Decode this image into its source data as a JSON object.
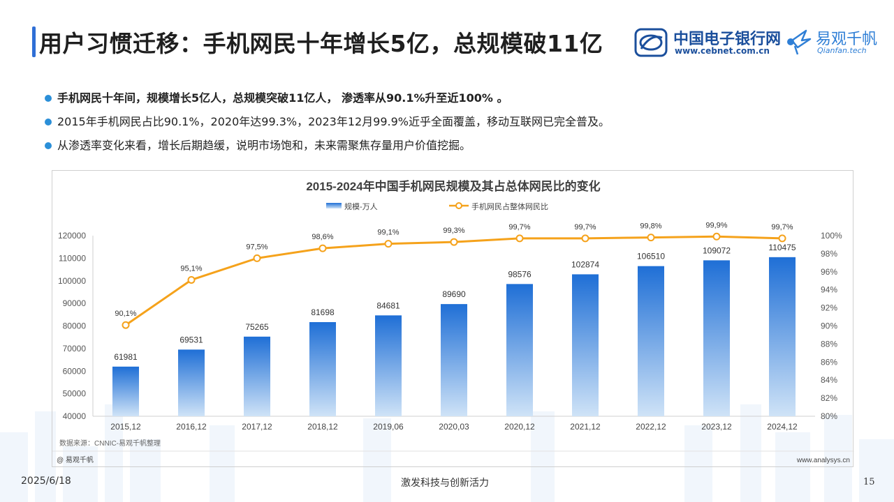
{
  "header": {
    "title": "用户习惯迁移：手机网民十年增长5亿，总规模破11亿",
    "logo_cebnet_cn": "中国电子银行网",
    "logo_cebnet_url": "www.cebnet.com.cn",
    "logo_qianfan_cn": "易观千帆",
    "logo_qianfan_en": "Qianfan.tech"
  },
  "bullets": [
    "手机网民十年间，规模增长5亿人，总规模突破11亿人， 渗透率从90.1%升至近100% 。",
    "2015年手机网民占比90.1%，2020年达99.3%，2023年12月99.9%近乎全面覆盖，移动互联网已完全普及。",
    "从渗透率变化来看，增长后期趋缓，说明市场饱和，未来需聚焦存量用户价值挖掘。"
  ],
  "chart_footer": {
    "source": "数据来源：CNNIC-易观千帆整理",
    "brand": "@ 易观千帆",
    "site": "www.analysys.cn"
  },
  "footer": {
    "date": "2025/6/18",
    "slogan": "激发科技与创新活力",
    "page": "15"
  },
  "colors": {
    "bar_top": "#1f6fd6",
    "bar_bottom": "#cfe3f7",
    "line": "#f5a21b",
    "accent": "#2b8fd8"
  },
  "chart_data": {
    "type": "bar",
    "title": "2015-2024年中国手机网民规模及其占总体网民比的变化",
    "categories": [
      "2015,12",
      "2016,12",
      "2017,12",
      "2018,12",
      "2019,06",
      "2020,03",
      "2020,12",
      "2021,12",
      "2022,12",
      "2023,12",
      "2024,12"
    ],
    "series": [
      {
        "name": "规模-万人",
        "type": "bar",
        "axis": "left",
        "values": [
          61981,
          69531,
          75265,
          81698,
          84681,
          89690,
          98576,
          102874,
          106510,
          109072,
          110475
        ],
        "labels": [
          "61981",
          "69531",
          "75265",
          "81698",
          "84681",
          "89690",
          "98576",
          "102874",
          "106510",
          "109072",
          "110475"
        ]
      },
      {
        "name": "手机网民占整体网民比",
        "type": "line",
        "axis": "right",
        "values": [
          90.1,
          95.1,
          97.5,
          98.6,
          99.1,
          99.3,
          99.7,
          99.7,
          99.8,
          99.9,
          99.7
        ],
        "labels": [
          "90,1%",
          "95,1%",
          "97,5%",
          "98,6%",
          "99,1%",
          "99,3%",
          "99,7%",
          "99,7%",
          "99,8%",
          "99,9%",
          "99,7%"
        ]
      }
    ],
    "ylim_left": [
      40000,
      120000
    ],
    "yticks_left": [
      "120000",
      "110000",
      "100000",
      "90000",
      "80000",
      "70000",
      "60000",
      "50000",
      "40000"
    ],
    "ylim_right": [
      80,
      100
    ],
    "yticks_right": [
      "100%",
      "98%",
      "96%",
      "94%",
      "92%",
      "90%",
      "88%",
      "86%",
      "84%",
      "82%",
      "80%"
    ],
    "legend": "top-center",
    "grid": false
  }
}
